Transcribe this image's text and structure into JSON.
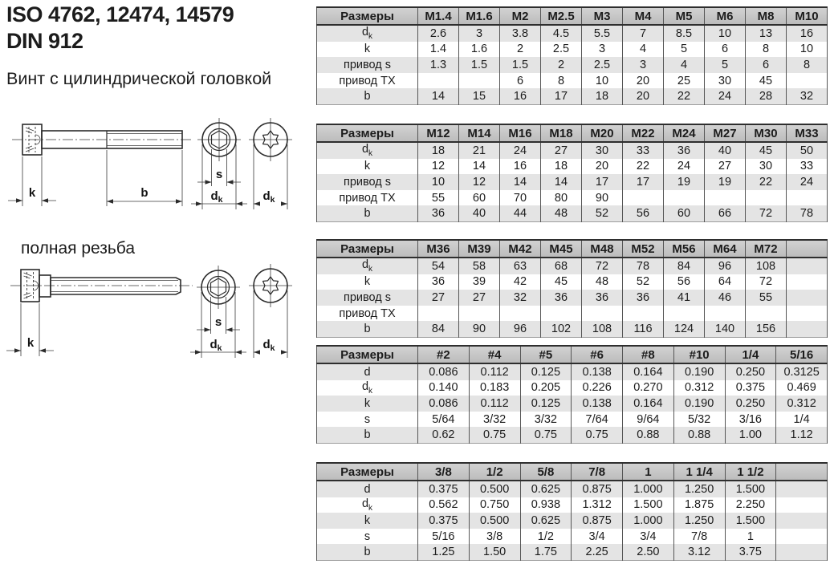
{
  "header": {
    "title_line1": "ISO 4762, 12474, 14579",
    "title_line2": "DIN 912",
    "subtitle": "Винт с цилиндрической головкой"
  },
  "labels": {
    "full_thread": "полная резьба",
    "dim_k": "k",
    "dim_b": "b",
    "dim_s": "s",
    "dim_d": "d",
    "dim_d_sub": "k"
  },
  "tables": [
    {
      "name": "metric-M1.4-M10",
      "header": [
        "Размеры",
        "M1.4",
        "M1.6",
        "M2",
        "M2.5",
        "M3",
        "M4",
        "M5",
        "M6",
        "M8",
        "M10"
      ],
      "rows": [
        {
          "label": "d~k~",
          "values": [
            "2.6",
            "3",
            "3.8",
            "4.5",
            "5.5",
            "7",
            "8.5",
            "10",
            "13",
            "16"
          ]
        },
        {
          "label": "k",
          "values": [
            "1.4",
            "1.6",
            "2",
            "2.5",
            "3",
            "4",
            "5",
            "6",
            "8",
            "10"
          ]
        },
        {
          "label": "привод s",
          "values": [
            "1.3",
            "1.5",
            "1.5",
            "2",
            "2.5",
            "3",
            "4",
            "5",
            "6",
            "8"
          ]
        },
        {
          "label": "привод TX",
          "values": [
            "",
            "",
            "6",
            "8",
            "10",
            "20",
            "25",
            "30",
            "45",
            ""
          ]
        },
        {
          "label": "b",
          "values": [
            "14",
            "15",
            "16",
            "17",
            "18",
            "20",
            "22",
            "24",
            "28",
            "32"
          ]
        }
      ]
    },
    {
      "name": "metric-M12-M33",
      "header": [
        "Размеры",
        "M12",
        "M14",
        "M16",
        "M18",
        "M20",
        "M22",
        "M24",
        "M27",
        "M30",
        "M33"
      ],
      "rows": [
        {
          "label": "d~k~",
          "values": [
            "18",
            "21",
            "24",
            "27",
            "30",
            "33",
            "36",
            "40",
            "45",
            "50"
          ]
        },
        {
          "label": "k",
          "values": [
            "12",
            "14",
            "16",
            "18",
            "20",
            "22",
            "24",
            "27",
            "30",
            "33"
          ]
        },
        {
          "label": "привод s",
          "values": [
            "10",
            "12",
            "14",
            "14",
            "17",
            "17",
            "19",
            "19",
            "22",
            "24"
          ]
        },
        {
          "label": "привод TX",
          "values": [
            "55",
            "60",
            "70",
            "80",
            "90",
            "",
            "",
            "",
            "",
            ""
          ]
        },
        {
          "label": "b",
          "values": [
            "36",
            "40",
            "44",
            "48",
            "52",
            "56",
            "60",
            "66",
            "72",
            "78"
          ]
        }
      ]
    },
    {
      "name": "metric-M36-M72",
      "header": [
        "Размеры",
        "M36",
        "M39",
        "M42",
        "M45",
        "M48",
        "M52",
        "M56",
        "M64",
        "M72",
        ""
      ],
      "rows": [
        {
          "label": "d~k~",
          "values": [
            "54",
            "58",
            "63",
            "68",
            "72",
            "78",
            "84",
            "96",
            "108",
            ""
          ]
        },
        {
          "label": "k",
          "values": [
            "36",
            "39",
            "42",
            "45",
            "48",
            "52",
            "56",
            "64",
            "72",
            ""
          ]
        },
        {
          "label": "привод s",
          "values": [
            "27",
            "27",
            "32",
            "36",
            "36",
            "36",
            "41",
            "46",
            "55",
            ""
          ]
        },
        {
          "label": "привод TX",
          "values": [
            "",
            "",
            "",
            "",
            "",
            "",
            "",
            "",
            "",
            ""
          ]
        },
        {
          "label": "b",
          "values": [
            "84",
            "90",
            "96",
            "102",
            "108",
            "116",
            "124",
            "140",
            "156",
            ""
          ]
        }
      ]
    },
    {
      "name": "imperial-number-sizes",
      "header": [
        "Размеры",
        "#2",
        "#4",
        "#5",
        "#6",
        "#8",
        "#10",
        "1/4",
        "5/16"
      ],
      "rows": [
        {
          "label": "d",
          "values": [
            "0.086",
            "0.112",
            "0.125",
            "0.138",
            "0.164",
            "0.190",
            "0.250",
            "0.3125"
          ]
        },
        {
          "label": "d~k~",
          "values": [
            "0.140",
            "0.183",
            "0.205",
            "0.226",
            "0.270",
            "0.312",
            "0.375",
            "0.469"
          ]
        },
        {
          "label": "k",
          "values": [
            "0.086",
            "0.112",
            "0.125",
            "0.138",
            "0.164",
            "0.190",
            "0.250",
            "0.312"
          ]
        },
        {
          "label": "s",
          "values": [
            "5/64",
            "3/32",
            "3/32",
            "7/64",
            "9/64",
            "5/32",
            "3/16",
            "1/4"
          ]
        },
        {
          "label": "b",
          "values": [
            "0.62",
            "0.75",
            "0.75",
            "0.75",
            "0.88",
            "0.88",
            "1.00",
            "1.12"
          ]
        }
      ]
    },
    {
      "name": "imperial-fraction-sizes",
      "header": [
        "Размеры",
        "3/8",
        "1/2",
        "5/8",
        "7/8",
        "1",
        "1 1/4",
        "1 1/2",
        ""
      ],
      "rows": [
        {
          "label": "d",
          "values": [
            "0.375",
            "0.500",
            "0.625",
            "0.875",
            "1.000",
            "1.250",
            "1.500",
            ""
          ]
        },
        {
          "label": "d~k~",
          "values": [
            "0.562",
            "0.750",
            "0.938",
            "1.312",
            "1.500",
            "1.875",
            "2.250",
            ""
          ]
        },
        {
          "label": "k",
          "values": [
            "0.375",
            "0.500",
            "0.625",
            "0.875",
            "1.000",
            "1.250",
            "1.500",
            ""
          ]
        },
        {
          "label": "s",
          "values": [
            "5/16",
            "3/8",
            "1/2",
            "3/4",
            "3/4",
            "7/8",
            "1",
            ""
          ]
        },
        {
          "label": "b",
          "values": [
            "1.25",
            "1.50",
            "1.75",
            "2.25",
            "2.50",
            "3.12",
            "3.75",
            ""
          ]
        }
      ]
    }
  ]
}
